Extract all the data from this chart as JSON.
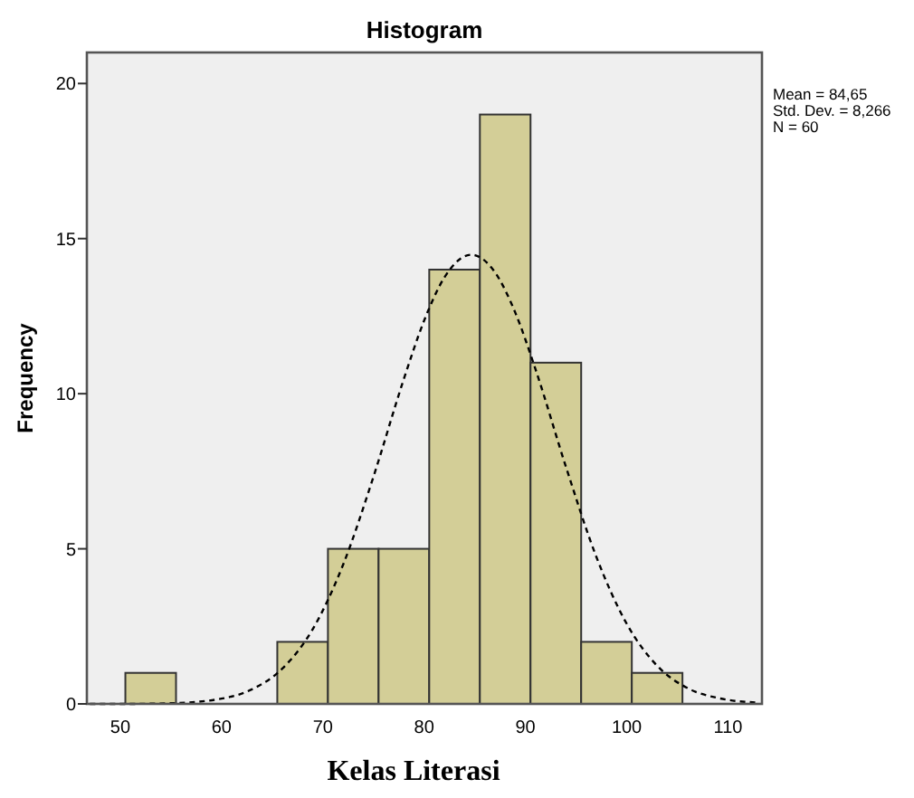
{
  "chart_data": {
    "type": "histogram",
    "title": "Histogram",
    "xlabel": "Kelas Literasi",
    "ylabel": "Frequency",
    "xlim": [
      46.7,
      113.35
    ],
    "xticks": [
      50,
      60,
      70,
      80,
      90,
      100,
      110
    ],
    "ylim": [
      0,
      21
    ],
    "yticks": [
      0,
      5,
      10,
      15,
      20
    ],
    "series": [
      {
        "type": "histogram",
        "color": "#d3ce97",
        "bins": [
          50.5,
          55.5,
          60.5,
          65.5,
          70.5,
          75.5,
          80.5,
          85.5,
          90.5,
          95.5,
          100.5,
          105.5
        ],
        "values": [
          1,
          0,
          0,
          2,
          5,
          5,
          14,
          19,
          11,
          2,
          1
        ]
      },
      {
        "type": "line",
        "color": "#000000",
        "line_style": "dashed",
        "x": [
          47,
          50,
          55,
          60,
          63,
          66,
          69,
          72,
          75,
          78,
          80,
          82,
          84.65,
          87,
          89,
          91,
          94,
          97,
          100,
          103,
          106,
          109,
          113
        ],
        "values": [
          0,
          0,
          0.02,
          0.17,
          0.47,
          1.14,
          2.41,
          4.49,
          7.33,
          10.48,
          12.36,
          13.75,
          14.48,
          13.91,
          12.61,
          10.78,
          7.64,
          4.74,
          2.58,
          1.23,
          0.51,
          0.19,
          0.04
        ]
      }
    ],
    "annotations": [
      "Mean = 84,65",
      "Std. Dev. = 8,266",
      "N = 60"
    ]
  }
}
